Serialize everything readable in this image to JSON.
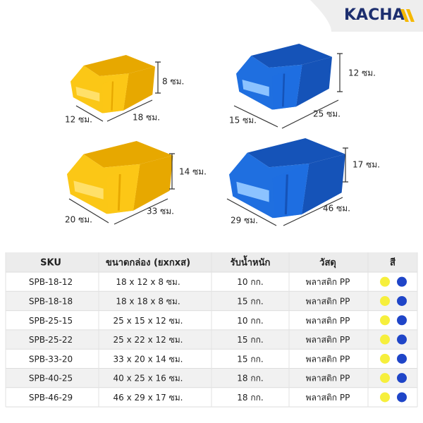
{
  "logo": "KACHA",
  "bins": [
    {
      "height": "8 ซม.",
      "width": "12 ซม.",
      "length": "18 ซม."
    },
    {
      "height": "12 ซม.",
      "width": "15 ซม.",
      "length": "25 ซม."
    },
    {
      "height": "14 ซม.",
      "width": "20 ซม.",
      "length": "33 ซม."
    },
    {
      "height": "17 ซม.",
      "width": "29 ซม.",
      "length": "46 ซม."
    }
  ],
  "table": {
    "headers": [
      "SKU",
      "ขนาดกล่อง (ยxกxส)",
      "รับน้ำหนัก",
      "วัสดุ",
      "สี"
    ],
    "rows": [
      [
        "SPB-18-12",
        "18 x 12 x 8 ซม.",
        "10 กก.",
        "พลาสติก PP"
      ],
      [
        "SPB-18-18",
        "18 x 18 x 8 ซม.",
        "15 กก.",
        "พลาสติก PP"
      ],
      [
        "SPB-25-15",
        "25 x 15 x 12 ซม.",
        "10 กก.",
        "พลาสติก PP"
      ],
      [
        "SPB-25-22",
        "25 x 22 x 12 ซม.",
        "15 กก.",
        "พลาสติก PP"
      ],
      [
        "SPB-33-20",
        "33 x 20 x 14 ซม.",
        "15 กก.",
        "พลาสติก PP"
      ],
      [
        "SPB-40-25",
        "40 x 25 x 16 ซม.",
        "18 กก.",
        "พลาสติก PP"
      ],
      [
        "SPB-46-29",
        "46 x 29 x 17 ซม.",
        "18 กก.",
        "พลาสติก PP"
      ]
    ]
  }
}
